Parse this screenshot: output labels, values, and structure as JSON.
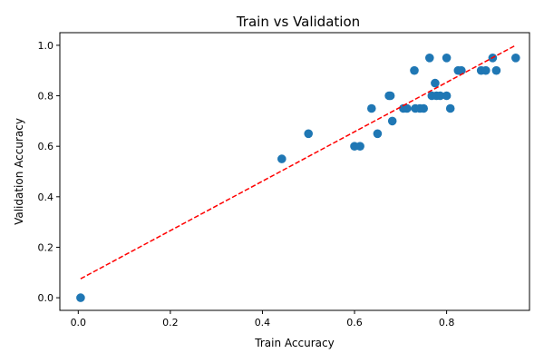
{
  "chart_data": {
    "type": "scatter",
    "title": "Train vs Validation",
    "xlabel": "Train Accuracy",
    "ylabel": "Validation Accuracy",
    "xlim": [
      -0.04,
      0.98
    ],
    "ylim": [
      -0.05,
      1.05
    ],
    "xticks": [
      0.0,
      0.2,
      0.4,
      0.6,
      0.8
    ],
    "xtick_labels": [
      "0.0",
      "0.2",
      "0.4",
      "0.6",
      "0.8"
    ],
    "yticks": [
      0.0,
      0.2,
      0.4,
      0.6,
      0.8,
      1.0
    ],
    "ytick_labels": [
      "0.0",
      "0.2",
      "0.4",
      "0.6",
      "0.8",
      "1.0"
    ],
    "grid": false,
    "series": [
      {
        "color": "#1f77b4",
        "marker": "circle",
        "points": [
          {
            "x": 0.005,
            "y": 0.0
          },
          {
            "x": 0.442,
            "y": 0.55
          },
          {
            "x": 0.5,
            "y": 0.65
          },
          {
            "x": 0.6,
            "y": 0.6
          },
          {
            "x": 0.612,
            "y": 0.6
          },
          {
            "x": 0.637,
            "y": 0.75
          },
          {
            "x": 0.65,
            "y": 0.65
          },
          {
            "x": 0.675,
            "y": 0.8
          },
          {
            "x": 0.678,
            "y": 0.8
          },
          {
            "x": 0.682,
            "y": 0.7
          },
          {
            "x": 0.706,
            "y": 0.75
          },
          {
            "x": 0.714,
            "y": 0.75
          },
          {
            "x": 0.73,
            "y": 0.9
          },
          {
            "x": 0.732,
            "y": 0.75
          },
          {
            "x": 0.742,
            "y": 0.75
          },
          {
            "x": 0.75,
            "y": 0.75
          },
          {
            "x": 0.763,
            "y": 0.95
          },
          {
            "x": 0.768,
            "y": 0.8
          },
          {
            "x": 0.775,
            "y": 0.85
          },
          {
            "x": 0.778,
            "y": 0.8
          },
          {
            "x": 0.786,
            "y": 0.8
          },
          {
            "x": 0.8,
            "y": 0.95
          },
          {
            "x": 0.8,
            "y": 0.8
          },
          {
            "x": 0.808,
            "y": 0.75
          },
          {
            "x": 0.825,
            "y": 0.9
          },
          {
            "x": 0.832,
            "y": 0.9
          },
          {
            "x": 0.875,
            "y": 0.9
          },
          {
            "x": 0.885,
            "y": 0.9
          },
          {
            "x": 0.9,
            "y": 0.95
          },
          {
            "x": 0.908,
            "y": 0.9
          },
          {
            "x": 0.95,
            "y": 0.95
          }
        ]
      }
    ],
    "fit_line": {
      "color": "#ff0000",
      "style": "dashed",
      "x": [
        0.005,
        0.95
      ],
      "y": [
        0.075,
        1.0
      ]
    }
  }
}
